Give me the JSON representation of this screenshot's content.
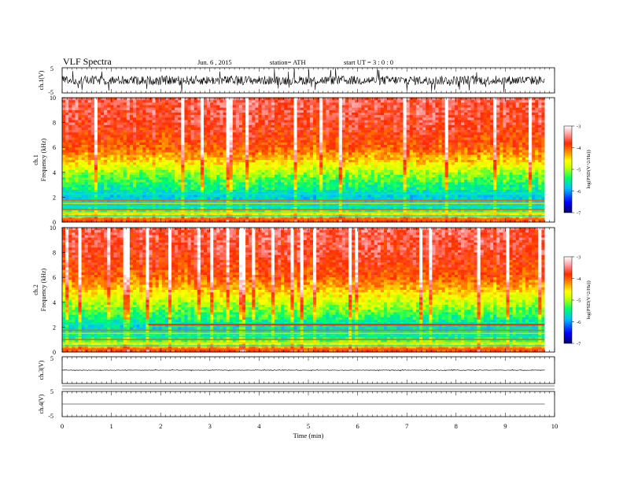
{
  "header": {
    "title": "VLF  Spectra",
    "date": "Jun. 6  , 2015",
    "station": "station= ATH",
    "start": "start  UT  =   3  : 0  : 0"
  },
  "colorbar": {
    "label": "log(PSD(V^2/Hz))",
    "ticks": [
      "-3",
      "-4",
      "-5",
      "-6",
      "-7"
    ],
    "colors": [
      "#000066",
      "#0000ff",
      "#00bfff",
      "#00ff66",
      "#c8ff00",
      "#ffff00",
      "#ff8c00",
      "#ff2a00",
      "#ff9999",
      "#ffffff"
    ]
  },
  "chart_data": [
    {
      "type": "line",
      "name": "ch1-waveform",
      "ylabel": "ch.1(V)",
      "ylim": [
        -5,
        5
      ],
      "yticks": [
        "5",
        "-5"
      ],
      "xlim": [
        0,
        10
      ],
      "description_values": {
        "typical_amplitude_V": 1.8,
        "spike_amplitude_V": 5
      }
    },
    {
      "type": "heatmap",
      "name": "ch1-spectrogram",
      "ylabel": "ch.1\nFrequency  (kHz)",
      "ylim": [
        0,
        10
      ],
      "yticks": [
        "0",
        "2",
        "4",
        "6",
        "8",
        "10"
      ],
      "xlim": [
        0,
        9.8
      ],
      "zlim": [
        -7,
        -3
      ],
      "zlabel": "log(PSD(V^2/Hz))",
      "frequency_profile_kHz": [
        0,
        0.5,
        1,
        2,
        3,
        4,
        5,
        6,
        8,
        10
      ],
      "typical_logPSD": [
        -3.8,
        -4.5,
        -5.5,
        -5.8,
        -5.4,
        -5.0,
        -4.4,
        -4.0,
        -3.7,
        -3.6
      ],
      "banded_lines_kHz": [
        0.25,
        0.5,
        0.75,
        1.0,
        1.25,
        1.5,
        1.75,
        2.25
      ]
    },
    {
      "type": "heatmap",
      "name": "ch2-spectrogram",
      "ylabel": "ch.2\nFrequency  (kHz)",
      "ylim": [
        0,
        10
      ],
      "yticks": [
        "0",
        "2",
        "4",
        "6",
        "8",
        "10"
      ],
      "xlim": [
        0,
        9.8
      ],
      "zlim": [
        -7,
        -3
      ],
      "zlabel": "log(PSD(V^2/Hz))",
      "frequency_profile_kHz": [
        0,
        0.5,
        1,
        2,
        3,
        4,
        5,
        6,
        8,
        10
      ],
      "typical_logPSD": [
        -3.8,
        -4.5,
        -5.4,
        -5.7,
        -5.3,
        -4.9,
        -4.4,
        -4.0,
        -3.7,
        -3.6
      ],
      "banded_lines_kHz": [
        0.25,
        0.5,
        0.75,
        1.0,
        1.25,
        1.5,
        1.75,
        2.25
      ],
      "band_change_time_min": 1.75
    },
    {
      "type": "line",
      "name": "ch3-waveform",
      "ylabel": "ch.3(V)",
      "ylim": [
        -5,
        5
      ],
      "yticks": [
        "5",
        "-5"
      ],
      "xlim": [
        0,
        10
      ],
      "description_values": {
        "offset_V": 0,
        "amplitude_V": 0.1
      }
    },
    {
      "type": "line",
      "name": "ch4-waveform",
      "ylabel": "ch.4(V)",
      "ylim": [
        -5,
        5
      ],
      "yticks": [
        "5",
        "-5"
      ],
      "xlim": [
        0,
        10
      ],
      "description_values": {
        "offset_V": 0,
        "amplitude_V": 0
      }
    }
  ],
  "xaxis": {
    "label": "Time  (min)",
    "ticks": [
      "0",
      "1",
      "2",
      "3",
      "4",
      "5",
      "6",
      "7",
      "8",
      "9",
      "10"
    ],
    "lim": [
      0,
      10
    ]
  }
}
